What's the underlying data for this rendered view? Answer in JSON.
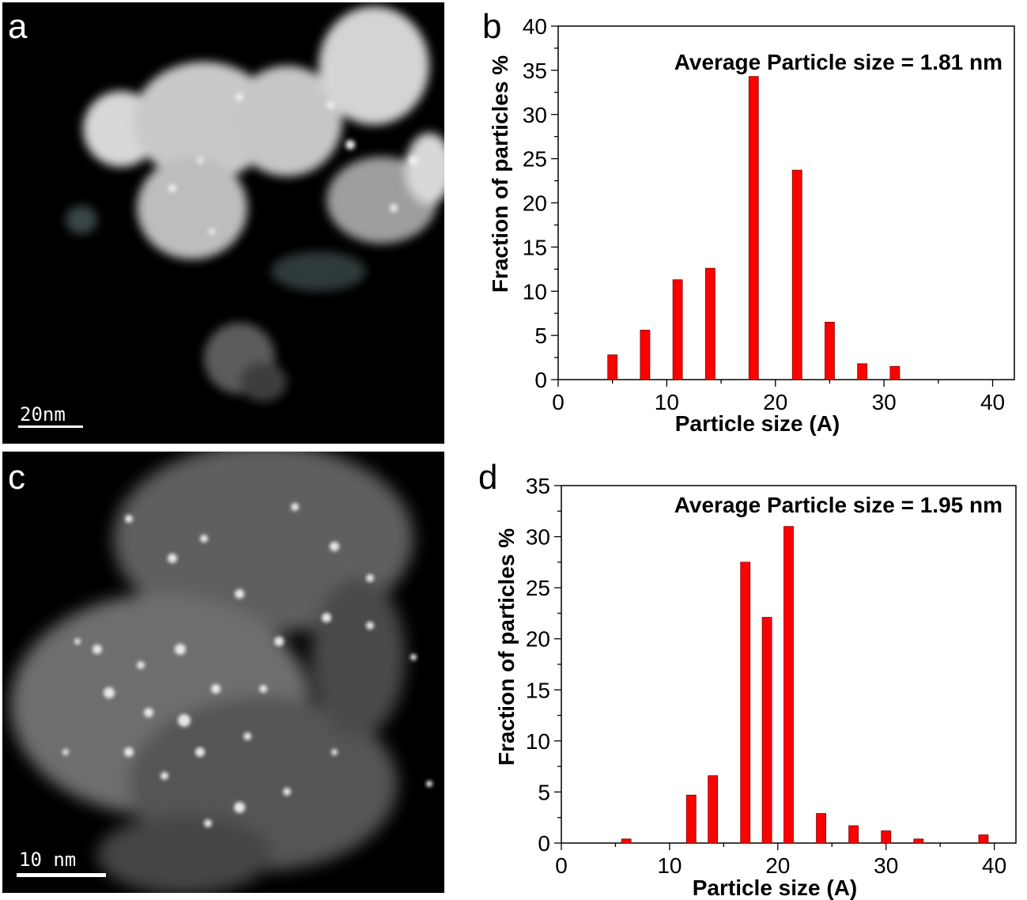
{
  "panels": {
    "a": {
      "label": "a",
      "scale_bar": "20nm"
    },
    "b": {
      "label": "b"
    },
    "c": {
      "label": "c",
      "scale_bar": "10 nm"
    },
    "d": {
      "label": "d"
    }
  },
  "colors": {
    "bar_fill": "#ff0000",
    "bar_stroke": "#7a0000",
    "axis": "#000000"
  },
  "chart_data": [
    {
      "panel": "b",
      "type": "bar",
      "annotation": "Average Particle size = 1.81 nm",
      "xlabel": "Particle size (A)",
      "ylabel": "Fraction of particles %",
      "xlim": [
        0,
        42
      ],
      "ylim": [
        0,
        40
      ],
      "xticks": [
        0,
        10,
        20,
        30,
        40
      ],
      "yticks": [
        0,
        5,
        10,
        15,
        20,
        25,
        30,
        35,
        40
      ],
      "x": [
        5,
        8,
        11,
        14,
        18,
        22,
        25,
        28,
        31
      ],
      "values": [
        2.8,
        5.6,
        11.3,
        12.6,
        34.3,
        23.7,
        6.5,
        1.8,
        1.5
      ],
      "grid": false,
      "legend": "none"
    },
    {
      "panel": "d",
      "type": "bar",
      "annotation": "Average Particle size = 1.95 nm",
      "xlabel": "Particle size (A)",
      "ylabel": "Fraction of particles %",
      "xlim": [
        0,
        42
      ],
      "ylim": [
        0,
        35
      ],
      "xticks": [
        0,
        10,
        20,
        30,
        40
      ],
      "yticks": [
        0,
        5,
        10,
        15,
        20,
        25,
        30,
        35
      ],
      "x": [
        6,
        12,
        14,
        17,
        19,
        21,
        24,
        27,
        30,
        33,
        39
      ],
      "values": [
        0.4,
        4.7,
        6.6,
        27.5,
        22.1,
        31.0,
        2.9,
        1.7,
        1.2,
        0.4,
        0.8
      ],
      "grid": false,
      "legend": "none"
    }
  ]
}
